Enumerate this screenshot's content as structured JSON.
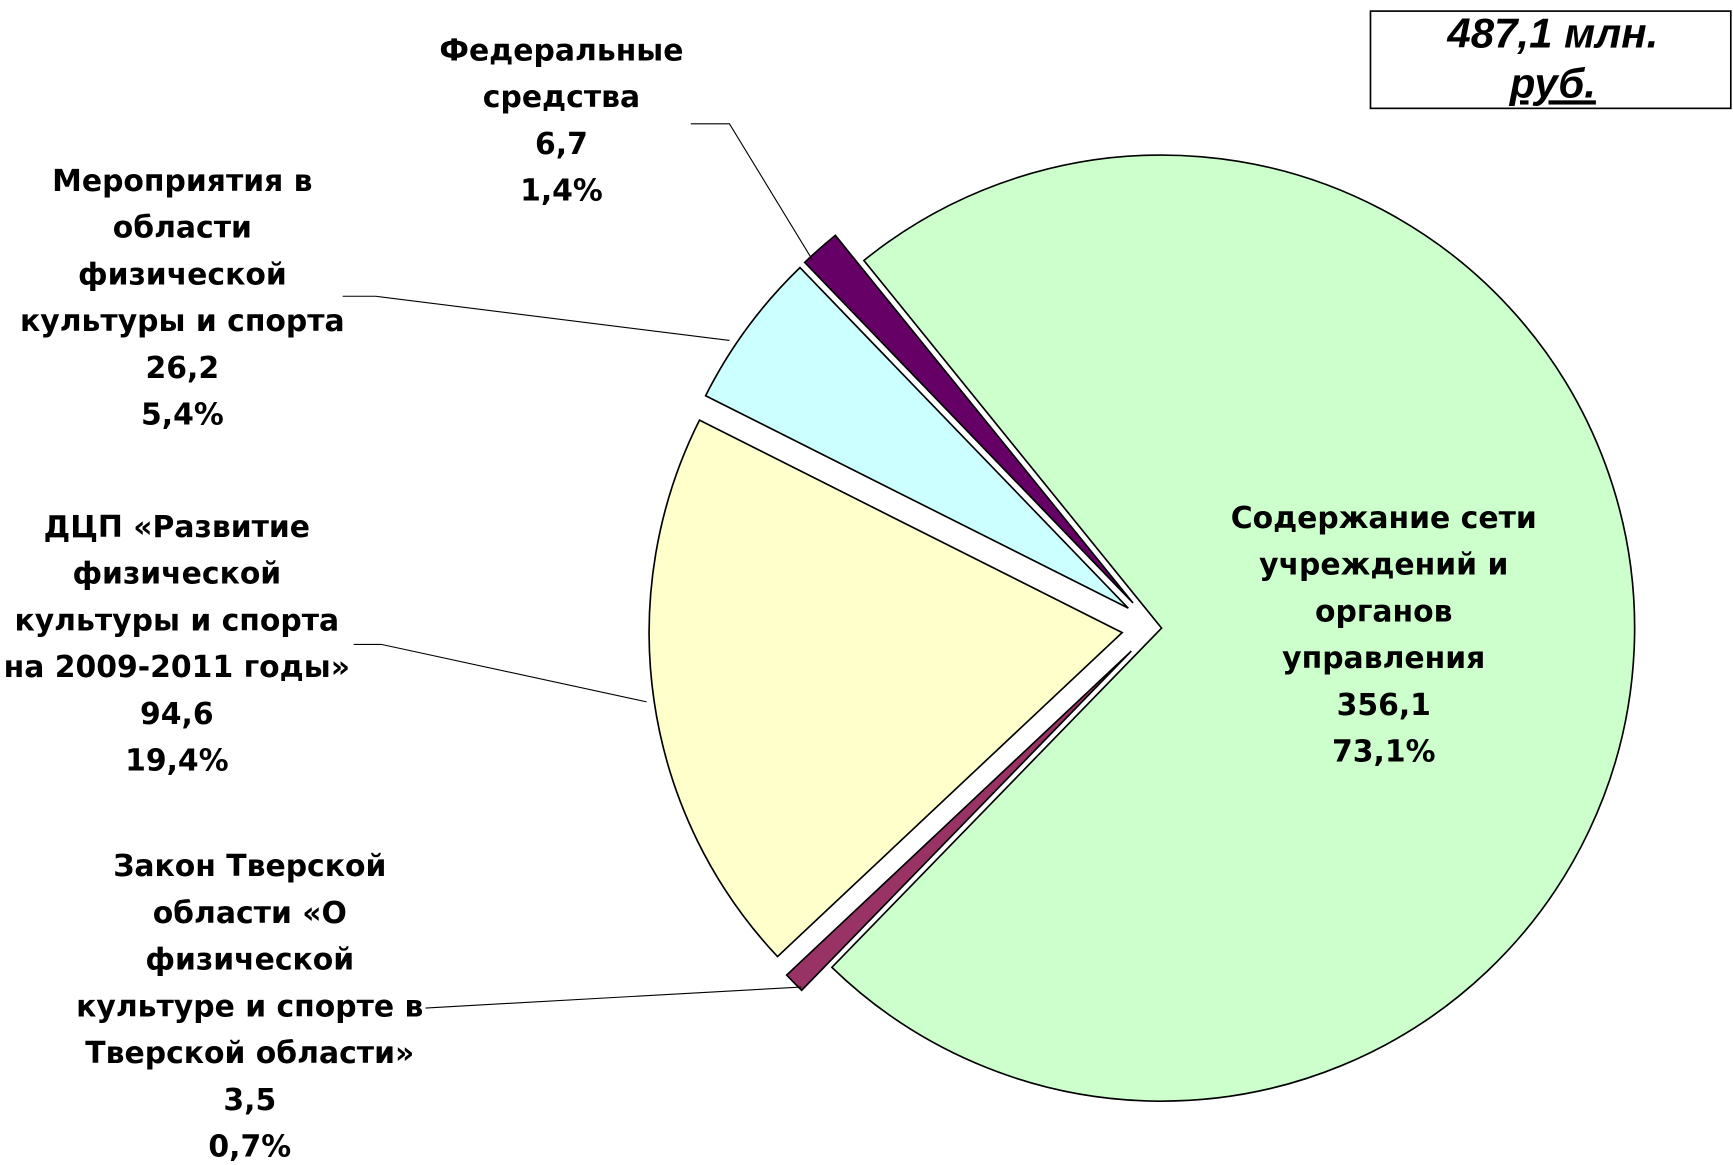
{
  "chart_data": {
    "type": "pie",
    "total_label": [
      "487,1 млн.",
      "руб."
    ],
    "categories": [
      [
        "Содержание сети",
        "учреждений и",
        "органов",
        "управления"
      ],
      [
        "Закон Тверской",
        "области  «О",
        "физической",
        "культуре и спорте в",
        "Тверской области»"
      ],
      [
        "ДЦП «Развитие",
        "физической",
        "культуры и спорта",
        "на 2009-2011 годы»"
      ],
      [
        "Мероприятия в",
        "области",
        "физической",
        "культуры и спорта"
      ],
      [
        "Федеральные",
        "средства"
      ]
    ],
    "values": [
      356.1,
      3.5,
      94.6,
      26.2,
      6.7
    ],
    "value_labels": [
      "356,1",
      "3,5",
      "94,6",
      "26,2",
      "6,7"
    ],
    "percents": [
      73.1,
      0.7,
      19.4,
      5.4,
      1.4
    ],
    "percent_labels": [
      "73,1%",
      "0,7%",
      "19,4%",
      "5,4%",
      "1,4%"
    ],
    "colors": [
      "#ccffcc",
      "#993366",
      "#ffffcc",
      "#ccffff",
      "#660066"
    ]
  }
}
